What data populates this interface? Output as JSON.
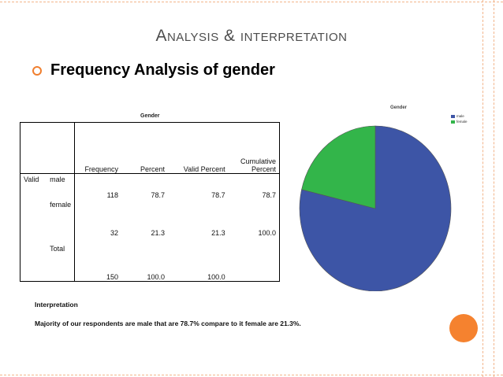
{
  "slide": {
    "title": "Analysis & interpretation",
    "bullet": "Frequency Analysis of gender",
    "accent_color": "#f07f2f"
  },
  "table": {
    "caption": "Gender",
    "headers": {
      "frequency": "Frequency",
      "percent": "Percent",
      "valid_percent": "Valid Percent",
      "cumulative_line1": "Cumulative",
      "cumulative_line2": "Percent"
    },
    "valid_label": "Valid",
    "rows": [
      {
        "label": "male",
        "frequency": "118",
        "percent": "78.7",
        "valid_percent": "78.7",
        "cumulative": "78.7"
      },
      {
        "label": "female",
        "frequency": "32",
        "percent": "21.3",
        "valid_percent": "21.3",
        "cumulative": "100.0"
      },
      {
        "label": "Total",
        "frequency": "150",
        "percent": "100.0",
        "valid_percent": "100.0",
        "cumulative": ""
      }
    ]
  },
  "chart_data": {
    "type": "pie",
    "title": "Gender",
    "categories": [
      "male",
      "female"
    ],
    "values": [
      78.7,
      21.3
    ],
    "colors": [
      "#3d55a6",
      "#33b54a"
    ],
    "legend": "top-right"
  },
  "interpretation": {
    "heading": "Interpretation",
    "text": "Majority of our respondents are male that are 78.7% compare to it female are 21.3%."
  }
}
